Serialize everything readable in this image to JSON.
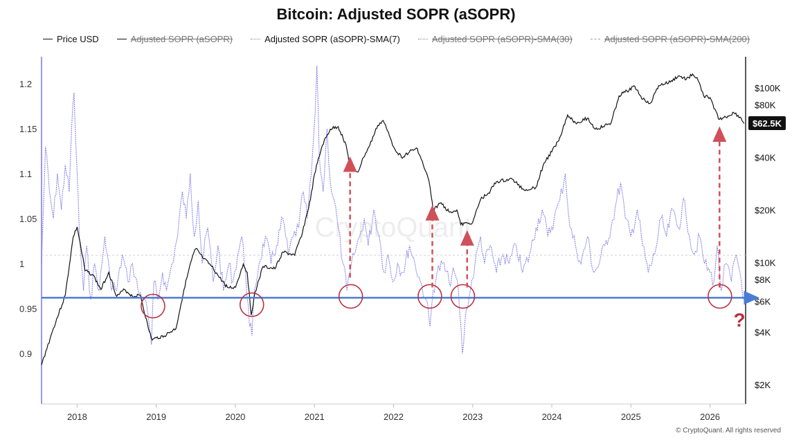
{
  "chart_data": {
    "type": "line",
    "title": "Bitcoin: Adjusted SOPR (aSOPR)",
    "legend": [
      {
        "label": "Price USD",
        "active": true,
        "style": "solid",
        "color": "#111111"
      },
      {
        "label": "Adjusted SOPR (aSOPR)",
        "active": false,
        "style": "solid",
        "color": "#111111"
      },
      {
        "label": "Adjusted SOPR (aSOPR)-SMA(7)",
        "active": true,
        "style": "dotted",
        "color": "#8a84e8"
      },
      {
        "label": "Adjusted SOPR (aSOPR)-SMA(30)",
        "active": false,
        "style": "dotted",
        "color": "#aaaaaa"
      },
      {
        "label": "Adjusted SOPR (aSOPR)-SMA(200)",
        "active": false,
        "style": "dashed",
        "color": "#aaaaaa"
      }
    ],
    "legend_position": "top",
    "x_ticks": [
      "2018",
      "2019",
      "2020",
      "2021",
      "2022",
      "2023",
      "2024",
      "2025",
      "2026"
    ],
    "y_left": {
      "ticks": [
        "1.2",
        "1.15",
        "1.1",
        "1.05",
        "1",
        "0.95",
        "0.9"
      ],
      "range": [
        0.88,
        1.23
      ]
    },
    "y_right": {
      "ticks": [
        "$100K",
        "$80K",
        "$40K",
        "$20K",
        "$10K",
        "$8K",
        "$6K",
        "$4K",
        "$2K"
      ],
      "scale": "log",
      "range": [
        1500,
        130000
      ]
    },
    "current_price_label": "$62.5K",
    "reference_line": {
      "value": 0.962,
      "color": "#4a7cd6"
    },
    "x_range": [
      2017.55,
      2026.45
    ],
    "series": [
      {
        "name": "Price USD",
        "axis": "right",
        "color": "#111111",
        "points": [
          [
            2017.55,
            2600
          ],
          [
            2017.7,
            4200
          ],
          [
            2017.85,
            6500
          ],
          [
            2017.95,
            14000
          ],
          [
            2018.0,
            16000
          ],
          [
            2018.05,
            12000
          ],
          [
            2018.1,
            9000
          ],
          [
            2018.2,
            8500
          ],
          [
            2018.3,
            7000
          ],
          [
            2018.4,
            8800
          ],
          [
            2018.5,
            6400
          ],
          [
            2018.6,
            7000
          ],
          [
            2018.7,
            6400
          ],
          [
            2018.8,
            6500
          ],
          [
            2018.9,
            4200
          ],
          [
            2018.95,
            3600
          ],
          [
            2019.0,
            3700
          ],
          [
            2019.1,
            3800
          ],
          [
            2019.25,
            4200
          ],
          [
            2019.35,
            7000
          ],
          [
            2019.45,
            10500
          ],
          [
            2019.5,
            12000
          ],
          [
            2019.6,
            10500
          ],
          [
            2019.7,
            9500
          ],
          [
            2019.8,
            8200
          ],
          [
            2019.9,
            7200
          ],
          [
            2020.0,
            7200
          ],
          [
            2020.1,
            9800
          ],
          [
            2020.15,
            8800
          ],
          [
            2020.2,
            5000
          ],
          [
            2020.25,
            6800
          ],
          [
            2020.35,
            9500
          ],
          [
            2020.5,
            9200
          ],
          [
            2020.6,
            11500
          ],
          [
            2020.75,
            11000
          ],
          [
            2020.85,
            15000
          ],
          [
            2020.95,
            23000
          ],
          [
            2021.0,
            32000
          ],
          [
            2021.1,
            47000
          ],
          [
            2021.2,
            58000
          ],
          [
            2021.3,
            60000
          ],
          [
            2021.4,
            47000
          ],
          [
            2021.45,
            35000
          ],
          [
            2021.55,
            33000
          ],
          [
            2021.62,
            40000
          ],
          [
            2021.7,
            47000
          ],
          [
            2021.8,
            61000
          ],
          [
            2021.87,
            65000
          ],
          [
            2021.92,
            57000
          ],
          [
            2022.0,
            46000
          ],
          [
            2022.1,
            40000
          ],
          [
            2022.2,
            43000
          ],
          [
            2022.3,
            45000
          ],
          [
            2022.35,
            39000
          ],
          [
            2022.45,
            29000
          ],
          [
            2022.5,
            20000
          ],
          [
            2022.6,
            22000
          ],
          [
            2022.7,
            19500
          ],
          [
            2022.8,
            20000
          ],
          [
            2022.85,
            16500
          ],
          [
            2022.95,
            16800
          ],
          [
            2023.0,
            17000
          ],
          [
            2023.1,
            23000
          ],
          [
            2023.2,
            25000
          ],
          [
            2023.3,
            29000
          ],
          [
            2023.5,
            30000
          ],
          [
            2023.65,
            26000
          ],
          [
            2023.8,
            27000
          ],
          [
            2023.9,
            37000
          ],
          [
            2024.0,
            43000
          ],
          [
            2024.1,
            52000
          ],
          [
            2024.2,
            70000
          ],
          [
            2024.3,
            63000
          ],
          [
            2024.45,
            67000
          ],
          [
            2024.55,
            58000
          ],
          [
            2024.65,
            60000
          ],
          [
            2024.75,
            63000
          ],
          [
            2024.85,
            90000
          ],
          [
            2024.95,
            96000
          ],
          [
            2025.05,
            102000
          ],
          [
            2025.15,
            86000
          ],
          [
            2025.25,
            82000
          ],
          [
            2025.35,
            103000
          ],
          [
            2025.5,
            108000
          ],
          [
            2025.6,
            117000
          ],
          [
            2025.7,
            112000
          ],
          [
            2025.78,
            120000
          ],
          [
            2025.85,
            110000
          ],
          [
            2025.92,
            90000
          ],
          [
            2026.0,
            88000
          ],
          [
            2026.05,
            76000
          ],
          [
            2026.12,
            66000
          ],
          [
            2026.2,
            68000
          ],
          [
            2026.3,
            72000
          ],
          [
            2026.38,
            68000
          ],
          [
            2026.43,
            62500
          ]
        ]
      },
      {
        "name": "Adjusted SOPR (aSOPR)-SMA(7)",
        "axis": "left",
        "color": "#8a84e8",
        "points": [
          [
            2017.55,
            1.0
          ],
          [
            2017.6,
            1.13
          ],
          [
            2017.65,
            1.08
          ],
          [
            2017.7,
            1.05
          ],
          [
            2017.75,
            1.1
          ],
          [
            2017.8,
            1.06
          ],
          [
            2017.85,
            1.11
          ],
          [
            2017.9,
            1.08
          ],
          [
            2017.93,
            1.15
          ],
          [
            2017.96,
            1.19
          ],
          [
            2017.99,
            1.12
          ],
          [
            2018.03,
            1.03
          ],
          [
            2018.08,
            0.97
          ],
          [
            2018.12,
            1.02
          ],
          [
            2018.17,
            0.96
          ],
          [
            2018.22,
            1.0
          ],
          [
            2018.28,
            0.97
          ],
          [
            2018.35,
            1.03
          ],
          [
            2018.42,
            0.98
          ],
          [
            2018.5,
            0.97
          ],
          [
            2018.57,
            1.01
          ],
          [
            2018.64,
            0.98
          ],
          [
            2018.7,
            1.0
          ],
          [
            2018.77,
            0.97
          ],
          [
            2018.85,
            0.96
          ],
          [
            2018.9,
            0.94
          ],
          [
            2018.94,
            0.91
          ],
          [
            2018.97,
            0.98
          ],
          [
            2019.02,
            0.96
          ],
          [
            2019.08,
            0.99
          ],
          [
            2019.13,
            0.97
          ],
          [
            2019.2,
            1.0
          ],
          [
            2019.27,
            1.03
          ],
          [
            2019.33,
            1.08
          ],
          [
            2019.38,
            1.05
          ],
          [
            2019.43,
            1.1
          ],
          [
            2019.48,
            1.03
          ],
          [
            2019.53,
            1.07
          ],
          [
            2019.58,
            1.0
          ],
          [
            2019.65,
            1.04
          ],
          [
            2019.72,
            0.98
          ],
          [
            2019.78,
            1.02
          ],
          [
            2019.85,
            0.97
          ],
          [
            2019.92,
            1.0
          ],
          [
            2019.97,
            0.98
          ],
          [
            2020.03,
            1.01
          ],
          [
            2020.08,
            1.03
          ],
          [
            2020.13,
            0.99
          ],
          [
            2020.18,
            0.93
          ],
          [
            2020.21,
            0.92
          ],
          [
            2020.24,
            0.97
          ],
          [
            2020.3,
            1.0
          ],
          [
            2020.38,
            1.03
          ],
          [
            2020.45,
            1.0
          ],
          [
            2020.52,
            1.02
          ],
          [
            2020.6,
            1.05
          ],
          [
            2020.67,
            1.01
          ],
          [
            2020.73,
            1.03
          ],
          [
            2020.8,
            1.04
          ],
          [
            2020.86,
            1.08
          ],
          [
            2020.91,
            1.05
          ],
          [
            2020.96,
            1.1
          ],
          [
            2021.01,
            1.17
          ],
          [
            2021.03,
            1.22
          ],
          [
            2021.06,
            1.12
          ],
          [
            2021.11,
            1.08
          ],
          [
            2021.16,
            1.15
          ],
          [
            2021.2,
            1.09
          ],
          [
            2021.25,
            1.07
          ],
          [
            2021.3,
            1.04
          ],
          [
            2021.36,
            1.0
          ],
          [
            2021.41,
            0.97
          ],
          [
            2021.45,
            0.99
          ],
          [
            2021.5,
            1.01
          ],
          [
            2021.57,
            1.03
          ],
          [
            2021.63,
            1.05
          ],
          [
            2021.68,
            1.02
          ],
          [
            2021.75,
            1.06
          ],
          [
            2021.82,
            1.03
          ],
          [
            2021.88,
            0.99
          ],
          [
            2021.93,
            1.01
          ],
          [
            2021.99,
            0.98
          ],
          [
            2022.05,
            1.0
          ],
          [
            2022.12,
            0.99
          ],
          [
            2022.2,
            1.02
          ],
          [
            2022.27,
            1.0
          ],
          [
            2022.34,
            0.98
          ],
          [
            2022.41,
            0.96
          ],
          [
            2022.46,
            0.93
          ],
          [
            2022.5,
            0.97
          ],
          [
            2022.55,
            0.99
          ],
          [
            2022.62,
            1.0
          ],
          [
            2022.7,
            0.98
          ],
          [
            2022.77,
            0.99
          ],
          [
            2022.82,
            0.97
          ],
          [
            2022.87,
            0.9
          ],
          [
            2022.92,
            0.95
          ],
          [
            2022.97,
            0.97
          ],
          [
            2023.03,
            1.0
          ],
          [
            2023.1,
            1.03
          ],
          [
            2023.15,
            1.0
          ],
          [
            2023.22,
            1.02
          ],
          [
            2023.3,
            0.99
          ],
          [
            2023.38,
            1.01
          ],
          [
            2023.46,
            1.0
          ],
          [
            2023.55,
            1.02
          ],
          [
            2023.63,
            0.99
          ],
          [
            2023.72,
            1.01
          ],
          [
            2023.8,
            1.04
          ],
          [
            2023.88,
            1.06
          ],
          [
            2023.95,
            1.03
          ],
          [
            2024.03,
            1.05
          ],
          [
            2024.1,
            1.07
          ],
          [
            2024.17,
            1.1
          ],
          [
            2024.23,
            1.04
          ],
          [
            2024.3,
            1.02
          ],
          [
            2024.37,
            1.0
          ],
          [
            2024.45,
            1.03
          ],
          [
            2024.53,
            0.99
          ],
          [
            2024.6,
            1.0
          ],
          [
            2024.67,
            1.02
          ],
          [
            2024.75,
            1.04
          ],
          [
            2024.82,
            1.07
          ],
          [
            2024.87,
            1.09
          ],
          [
            2024.93,
            1.05
          ],
          [
            2025.0,
            1.03
          ],
          [
            2025.08,
            1.06
          ],
          [
            2025.15,
            1.02
          ],
          [
            2025.22,
            0.99
          ],
          [
            2025.3,
            1.01
          ],
          [
            2025.38,
            1.05
          ],
          [
            2025.45,
            1.03
          ],
          [
            2025.53,
            1.06
          ],
          [
            2025.6,
            1.04
          ],
          [
            2025.68,
            1.07
          ],
          [
            2025.74,
            1.03
          ],
          [
            2025.8,
            1.01
          ],
          [
            2025.87,
            1.03
          ],
          [
            2025.93,
            1.0
          ],
          [
            2026.0,
            0.99
          ],
          [
            2026.05,
            0.98
          ],
          [
            2026.09,
            1.02
          ],
          [
            2026.14,
            0.97
          ],
          [
            2026.2,
            1.0
          ],
          [
            2026.27,
            0.98
          ],
          [
            2026.33,
            1.01
          ],
          [
            2026.38,
            0.99
          ],
          [
            2026.43,
            0.96
          ]
        ]
      }
    ],
    "highlighted_lows": [
      "2018-12",
      "2020-03",
      "2021-06",
      "2022-06",
      "2022-11",
      "2026-02"
    ],
    "rebound_arrows": [
      "2021-06",
      "2022-06",
      "2022-11",
      "2026-02"
    ],
    "question_mark": "?",
    "watermark": "CryptoQuant",
    "footer": "© CryptoQuant. All rights reserved"
  }
}
